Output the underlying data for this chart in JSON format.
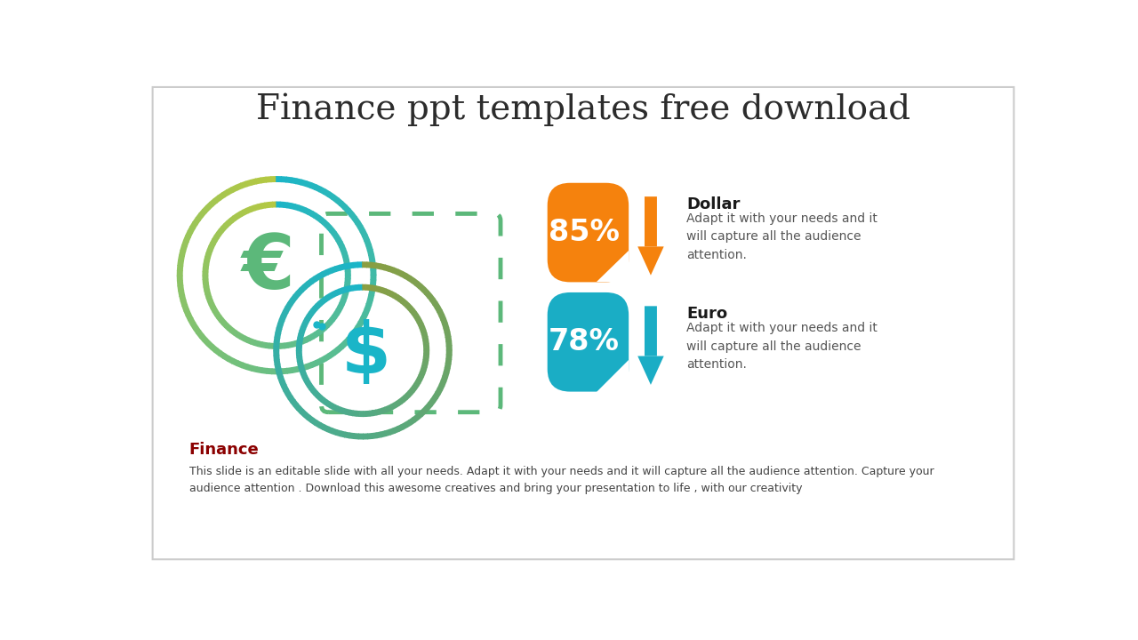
{
  "title": "Finance ppt templates free download",
  "title_fontsize": 28,
  "title_color": "#2c2c2c",
  "title_font": "serif",
  "bg_color": "#ffffff",
  "border_color": "#cccccc",
  "item1_pct": "85%",
  "item1_label": "Dollar",
  "item1_desc": "Adapt it with your needs and it\nwill capture all the audience\nattention.",
  "item1_badge_color": "#F5820D",
  "item1_arrow_color": "#F5820D",
  "item2_pct": "78%",
  "item2_label": "Euro",
  "item2_desc": "Adapt it with your needs and it\nwill capture all the audience\nattention.",
  "item2_badge_color": "#1AADC5",
  "item2_arrow_color": "#1AADC5",
  "pct_fontsize": 24,
  "label_fontsize": 13,
  "desc_fontsize": 10,
  "footer_title": "Finance",
  "footer_title_color": "#8B0000",
  "footer_title_fontsize": 13,
  "footer_text": "This slide is an editable slide with all your needs. Adapt it with your needs and it will capture all the audience attention. Capture your\naudience attention . Download this awesome creatives and bring your presentation to life , with our creativity",
  "footer_text_fontsize": 9,
  "footer_text_color": "#444444",
  "color_yellow": "#b5c842",
  "color_green": "#5cb87a",
  "color_teal": "#1ab5c8",
  "color_blue_teal": "#2a7a90",
  "color_gold": "#8B9E40"
}
